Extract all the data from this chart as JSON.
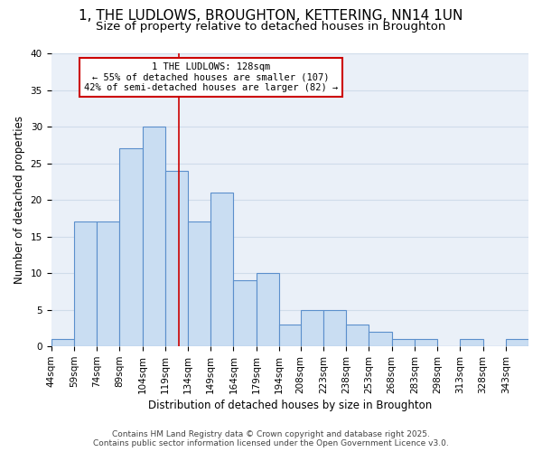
{
  "title": "1, THE LUDLOWS, BROUGHTON, KETTERING, NN14 1UN",
  "subtitle": "Size of property relative to detached houses in Broughton",
  "xlabel": "Distribution of detached houses by size in Broughton",
  "ylabel": "Number of detached properties",
  "bin_labels": [
    "44sqm",
    "59sqm",
    "74sqm",
    "89sqm",
    "104sqm",
    "119sqm",
    "134sqm",
    "149sqm",
    "164sqm",
    "179sqm",
    "194sqm",
    "208sqm",
    "223sqm",
    "238sqm",
    "253sqm",
    "268sqm",
    "283sqm",
    "298sqm",
    "313sqm",
    "328sqm",
    "343sqm"
  ],
  "bin_edges": [
    44,
    59,
    74,
    89,
    104,
    119,
    134,
    149,
    164,
    179,
    194,
    208,
    223,
    238,
    253,
    268,
    283,
    298,
    313,
    328,
    343
  ],
  "bin_width": 15,
  "counts": [
    1,
    17,
    17,
    27,
    30,
    24,
    17,
    21,
    9,
    10,
    3,
    5,
    5,
    3,
    2,
    1,
    1,
    0,
    1,
    0,
    1
  ],
  "bar_color": "#c9ddf2",
  "bar_edgecolor": "#5b8fcc",
  "bar_linewidth": 0.8,
  "vline_x": 128,
  "vline_color": "#cc0000",
  "annotation_title": "1 THE LUDLOWS: 128sqm",
  "annotation_line1": "← 55% of detached houses are smaller (107)",
  "annotation_line2": "42% of semi-detached houses are larger (82) →",
  "ylim": [
    0,
    40
  ],
  "yticks": [
    0,
    5,
    10,
    15,
    20,
    25,
    30,
    35,
    40
  ],
  "grid_color": "#d0dcea",
  "background_color": "#eaf0f8",
  "footer1": "Contains HM Land Registry data © Crown copyright and database right 2025.",
  "footer2": "Contains public sector information licensed under the Open Government Licence v3.0.",
  "title_fontsize": 11,
  "subtitle_fontsize": 9.5,
  "label_fontsize": 8.5,
  "tick_fontsize": 7.5,
  "annotation_fontsize": 7.5,
  "footer_fontsize": 6.5
}
